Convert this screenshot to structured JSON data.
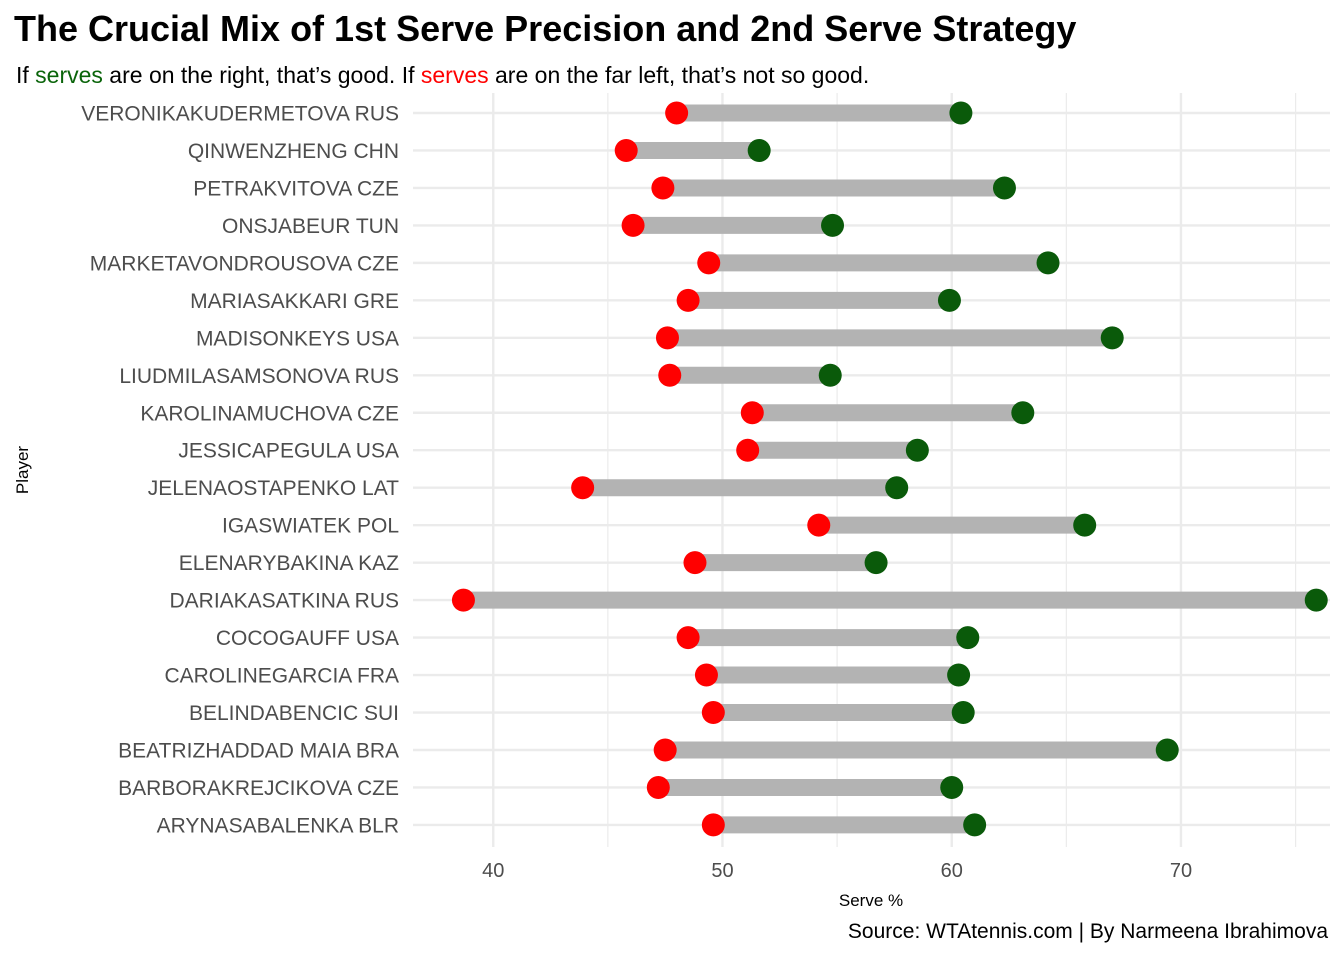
{
  "title": "The Crucial Mix of 1st Serve Precision and 2nd Serve Strategy",
  "subtitle": {
    "part1": "If ",
    "good_word": "serves",
    "part2": " are on the right, that’s good. If ",
    "bad_word": "serves",
    "part3": " are on the far left, that’s not so good."
  },
  "caption": "Source: WTAtennis.com | By Narmeena Ibrahimova",
  "colors": {
    "good": "#0a5a0a",
    "bad": "#ff0000",
    "segment": "#b3b3b3",
    "grid": "#ebebeb"
  },
  "chart_data": {
    "type": "dumbbell",
    "xlabel": "Serve %",
    "ylabel": "Player",
    "xlim": [
      36.5,
      76.5
    ],
    "xticks": [
      40,
      50,
      60,
      70
    ],
    "grid": true,
    "players": [
      {
        "name": "VERONIKAKUDERMETOVA RUS",
        "low": 48.0,
        "high": 60.4
      },
      {
        "name": "QINWENZHENG CHN",
        "low": 45.8,
        "high": 51.6
      },
      {
        "name": "PETRAKVITOVA CZE",
        "low": 47.4,
        "high": 62.3
      },
      {
        "name": "ONSJABEUR TUN",
        "low": 46.1,
        "high": 54.8
      },
      {
        "name": "MARKETAVONDROUSOVA CZE",
        "low": 49.4,
        "high": 64.2
      },
      {
        "name": "MARIASAKKARI GRE",
        "low": 48.5,
        "high": 59.9
      },
      {
        "name": "MADISONKEYS USA",
        "low": 47.6,
        "high": 67.0
      },
      {
        "name": "LIUDMILASAMSONOVA RUS",
        "low": 47.7,
        "high": 54.7
      },
      {
        "name": "KAROLINAMUCHOVA CZE",
        "low": 51.3,
        "high": 63.1
      },
      {
        "name": "JESSICAPEGULA USA",
        "low": 51.1,
        "high": 58.5
      },
      {
        "name": "JELENAOSTAPENKO LAT",
        "low": 43.9,
        "high": 57.6
      },
      {
        "name": "IGASWIATEK POL",
        "low": 54.2,
        "high": 65.8
      },
      {
        "name": "ELENARYBAKINA KAZ",
        "low": 48.8,
        "high": 56.7
      },
      {
        "name": "DARIAKASATKINA RUS",
        "low": 38.7,
        "high": 75.9
      },
      {
        "name": "COCOGAUFF USA",
        "low": 48.5,
        "high": 60.7
      },
      {
        "name": "CAROLINEGARCIA FRA",
        "low": 49.3,
        "high": 60.3
      },
      {
        "name": "BELINDABENCIC SUI",
        "low": 49.6,
        "high": 60.5
      },
      {
        "name": "BEATRIZHADDAD MAIA BRA",
        "low": 47.5,
        "high": 69.4
      },
      {
        "name": "BARBORAKREJCIKOVA CZE",
        "low": 47.2,
        "high": 60.0
      },
      {
        "name": "ARYNASABALENKA BLR",
        "low": 49.6,
        "high": 61.0
      }
    ]
  }
}
